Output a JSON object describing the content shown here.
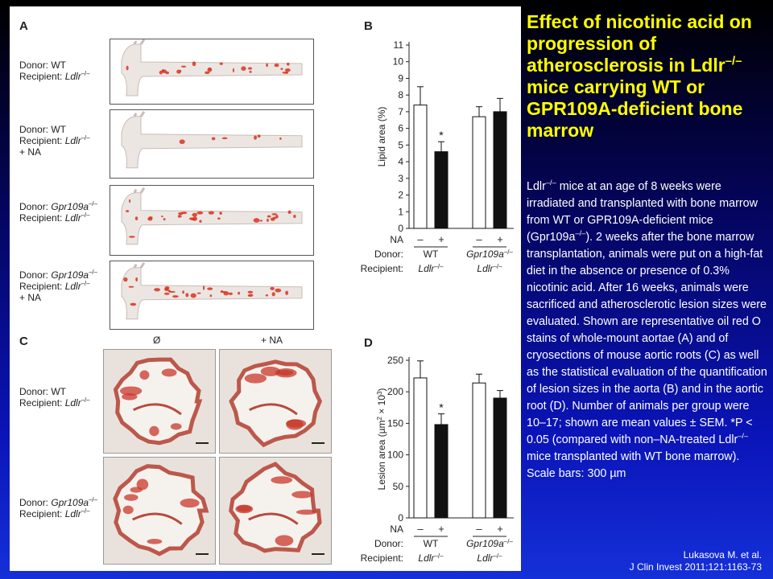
{
  "slide": {
    "title_parts": [
      "Effect of nicotinic acid on progression of atherosclerosis in Ldlr",
      "–/–",
      " mice carrying WT or GPR109A-deficient bone marrow"
    ],
    "description_parts": [
      "Ldlr",
      "–/–",
      " mice at an age of 8 weeks were irradiated and transplanted with bone marrow from WT or GPR109A-deficient mice (Gpr109a",
      "–/–",
      "). 2 weeks after the bone marrow transplantation, animals were put on a high-fat diet in the absence or presence of 0.3% nicotinic acid. After 16 weeks, animals were sacrificed and atherosclerotic lesion sizes were evaluated. Shown are representative oil red O stains of whole-mount aortae (A) and of cryosections of mouse aortic roots (C) as well as the statistical evaluation of the quantification of lesion sizes in the aorta (B) and in the aortic root (D). Number of animals per group were 10–17; shown are mean values ± SEM. *P < 0.05 (compared with non–NA-treated Ldlr",
      "–/–",
      " mice transplanted with WT bone marrow). Scale bars: 300 µm"
    ],
    "citation_line1": "Lukasova M. et al.",
    "citation_line2": "J Clin Invest 2011;121:1163-73"
  },
  "figure": {
    "panel_a": {
      "letter": "A",
      "rows": [
        {
          "donor": "Donor: WT",
          "recipient_prefix": "Recipient: ",
          "recipient_gene": "Ldlr",
          "recipient_sup": "–/–",
          "extra": ""
        },
        {
          "donor": "Donor: WT",
          "recipient_prefix": "Recipient: ",
          "recipient_gene": "Ldlr",
          "recipient_sup": "–/–",
          "extra": "+ NA"
        },
        {
          "donor_prefix": "Donor: ",
          "donor_gene": "Gpr109a",
          "donor_sup": "–/–",
          "recipient_prefix": "Recipient: ",
          "recipient_gene": "Ldlr",
          "recipient_sup": "–/–",
          "extra": ""
        },
        {
          "donor_prefix": "Donor: ",
          "donor_gene": "Gpr109a",
          "donor_sup": "–/–",
          "recipient_prefix": "Recipient: ",
          "recipient_gene": "Ldlr",
          "recipient_sup": "–/–",
          "extra": "+ NA"
        }
      ]
    },
    "panel_c": {
      "letter": "C",
      "col_headers": [
        "Ø",
        "+ NA"
      ],
      "rows": [
        {
          "donor": "Donor: WT",
          "recipient_prefix": "Recipient: ",
          "recipient_gene": "Ldlr",
          "recipient_sup": "–/–"
        },
        {
          "donor_prefix": "Donor: ",
          "donor_gene": "Gpr109a",
          "donor_sup": "–/–",
          "recipient_prefix": "Recipient: ",
          "recipient_gene": "Ldlr",
          "recipient_sup": "–/–"
        }
      ]
    },
    "panel_b_letter": "B",
    "panel_d_letter": "D"
  },
  "chart_data": [
    {
      "type": "bar",
      "panel": "B",
      "ylabel": "Lipid area (%)",
      "ylim": [
        0,
        11
      ],
      "yticks": [
        0,
        1,
        2,
        3,
        4,
        5,
        6,
        7,
        8,
        9,
        10,
        11
      ],
      "bars": [
        {
          "na": "–",
          "value": 7.4,
          "err": 1.1,
          "fill": "white"
        },
        {
          "na": "+",
          "value": 4.6,
          "err": 0.6,
          "fill": "black",
          "significance": "*"
        },
        {
          "na": "–",
          "value": 6.7,
          "err": 0.6,
          "fill": "white"
        },
        {
          "na": "+",
          "value": 7.0,
          "err": 0.8,
          "fill": "black"
        }
      ],
      "row_labels": {
        "na": "NA",
        "donor": "Donor:",
        "recipient": "Recipient:"
      },
      "groups": [
        {
          "donor": "WT",
          "recipient_gene": "Ldlr",
          "recipient_sup": "–/–"
        },
        {
          "donor_gene": "Gpr109a",
          "donor_sup": "–/–",
          "recipient_gene": "Ldlr",
          "recipient_sup": "–/–"
        }
      ]
    },
    {
      "type": "bar",
      "panel": "D",
      "ylabel_prefix": "Lesion area (µm",
      "ylabel_sup1": "2",
      "ylabel_mid": " × 10",
      "ylabel_sup2": "3",
      "ylabel_suffix": ")",
      "ylim": [
        0,
        250
      ],
      "yticks": [
        0,
        50,
        100,
        150,
        200,
        250
      ],
      "bars": [
        {
          "na": "–",
          "value": 222,
          "err": 27,
          "fill": "white"
        },
        {
          "na": "+",
          "value": 148,
          "err": 17,
          "fill": "black",
          "significance": "*"
        },
        {
          "na": "–",
          "value": 214,
          "err": 14,
          "fill": "white"
        },
        {
          "na": "+",
          "value": 190,
          "err": 12,
          "fill": "black"
        }
      ],
      "row_labels": {
        "na": "NA",
        "donor": "Donor:",
        "recipient": "Recipient:"
      },
      "groups": [
        {
          "donor": "WT",
          "recipient_gene": "Ldlr",
          "recipient_sup": "–/–"
        },
        {
          "donor_gene": "Gpr109a",
          "donor_sup": "–/–",
          "recipient_gene": "Ldlr",
          "recipient_sup": "–/–"
        }
      ]
    }
  ]
}
